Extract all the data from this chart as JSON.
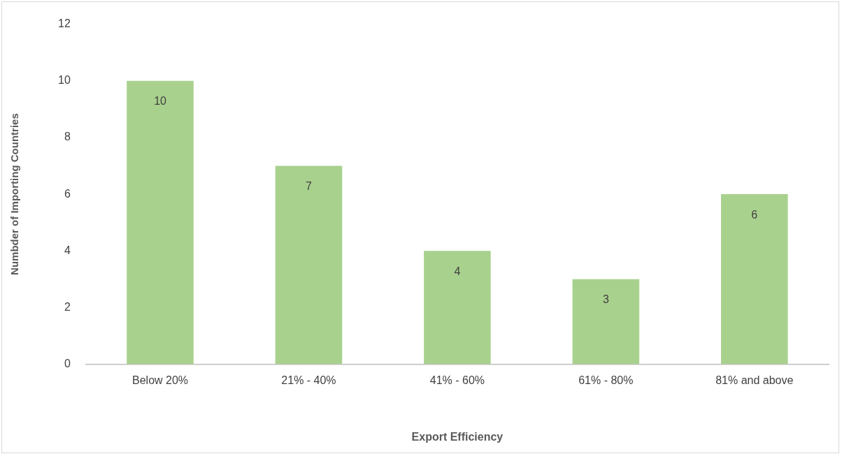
{
  "chart_data": {
    "type": "bar",
    "xlabel": "Export Efficiency",
    "ylabel": "Numbder of Importing Countries",
    "categories": [
      "Below 20%",
      "21% - 40%",
      "41% - 60%",
      "61% - 80%",
      "81% and above"
    ],
    "values": [
      10,
      7,
      4,
      3,
      6
    ],
    "color": "#a9d18e",
    "ylim": [
      0,
      12
    ],
    "yticks": [
      0,
      2,
      4,
      6,
      8,
      10,
      12
    ],
    "grid": false,
    "legend": false,
    "data_labels": true
  }
}
